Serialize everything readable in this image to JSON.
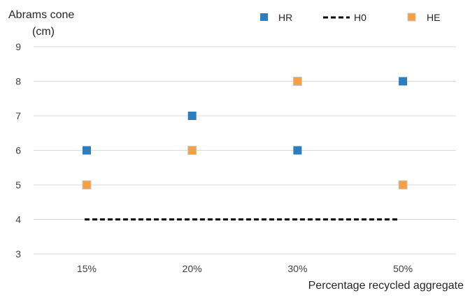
{
  "chart_data": {
    "type": "scatter",
    "title": "",
    "ylabel_lines": [
      "Abrams cone",
      "(cm)"
    ],
    "xlabel": "Percentage recycled aggregate",
    "categories": [
      "15%",
      "20%",
      "30%",
      "50%"
    ],
    "ylim": [
      3,
      9
    ],
    "yticks": [
      3,
      4,
      5,
      6,
      7,
      8,
      9
    ],
    "grid": true,
    "legend_position": "top",
    "series": [
      {
        "name": "HR",
        "type": "scatter",
        "marker": "square",
        "color": "#2e7ebf",
        "values": [
          6,
          7,
          6,
          8
        ]
      },
      {
        "name": "H0",
        "type": "line",
        "style": "dashed",
        "color": "#000000",
        "values": [
          4,
          4,
          4,
          4
        ]
      },
      {
        "name": "HE",
        "type": "scatter",
        "marker": "square",
        "color": "#f5a042",
        "values": [
          5,
          6,
          8,
          5
        ]
      }
    ]
  }
}
